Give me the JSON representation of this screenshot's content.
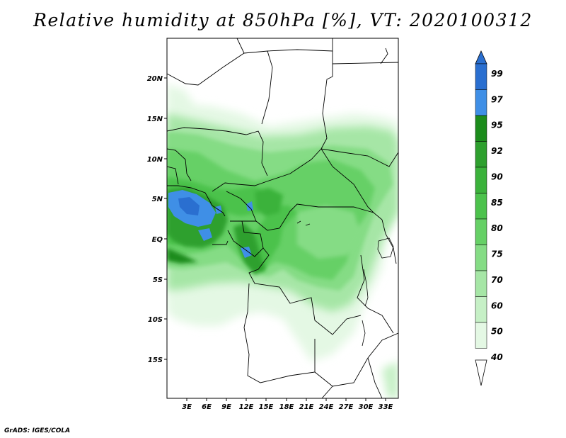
{
  "title": "Relative humidity at 850hPa [%], VT: 2020100312",
  "credit": "GrADS: IGES/COLA",
  "lat_labels": [
    "20N",
    "15N",
    "10N",
    "5N",
    "EQ",
    "5S",
    "10S",
    "15S"
  ],
  "lon_labels": [
    "3E",
    "6E",
    "9E",
    "12E",
    "15E",
    "18E",
    "21E",
    "24E",
    "27E",
    "30E",
    "33E"
  ],
  "colorbar": {
    "levels": [
      "99",
      "97",
      "95",
      "92",
      "90",
      "85",
      "80",
      "75",
      "70",
      "60",
      "50",
      "40"
    ],
    "colors": [
      "#2a6fd0",
      "#3f8fe6",
      "#1c8c1c",
      "#2ea02e",
      "#3bb23b",
      "#4cc24c",
      "#66d066",
      "#85dc85",
      "#a6e6a6",
      "#c6f0c6",
      "#e4f8e4",
      "#ffffff"
    ]
  }
}
